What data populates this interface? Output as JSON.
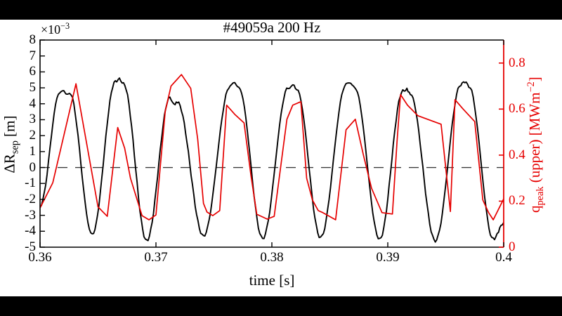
{
  "title": "#49059a 200 Hz",
  "colors": {
    "left_axis": "#000000",
    "right_axis": "#e60000",
    "zero_line": "#3c3c3c",
    "figure_bg": "#ffffff",
    "letterbox": "#000000"
  },
  "axes": {
    "x": {
      "label": "time [s]",
      "tick_labels": [
        "0.36",
        "0.37",
        "0.38",
        "0.39",
        "0.4"
      ],
      "tick_values": [
        0.36,
        0.37,
        0.38,
        0.39,
        0.4
      ],
      "range": [
        0.36,
        0.4
      ]
    },
    "y_left": {
      "label_prefix": "ΔR",
      "label_sub": "sep",
      "label_suffix": " [m]",
      "multiplier_base": "×10",
      "multiplier_sup": "−3",
      "tick_labels": [
        "8",
        "7",
        "6",
        "5",
        "4",
        "3",
        "2",
        "1",
        "0",
        "-1",
        "-2",
        "-3",
        "-4",
        "-5"
      ],
      "tick_values": [
        8,
        7,
        6,
        5,
        4,
        3,
        2,
        1,
        0,
        -1,
        -2,
        -3,
        -4,
        -5
      ],
      "range": [
        -5,
        8
      ]
    },
    "y_right": {
      "label_main": "q",
      "label_sub": "peak",
      "label_mid": " (upper) [MWm",
      "label_sup": "−2",
      "label_close": "]",
      "tick_labels": [
        "0",
        "0.2",
        "0.4",
        "0.6",
        "0.8"
      ],
      "tick_values": [
        0,
        0.2,
        0.4,
        0.6,
        0.8
      ],
      "range": [
        0,
        0.9
      ]
    }
  },
  "chart_data": {
    "type": "line",
    "title": "#49059a 200 Hz",
    "xlabel": "time [s]",
    "x_range": [
      0.36,
      0.4
    ],
    "y_left_range": [
      -5,
      8
    ],
    "y_left_units": "1e-3 m",
    "y_right_range": [
      0,
      0.9
    ],
    "y_right_units": "MW m^-2",
    "grid": false,
    "legend": false,
    "reference_line": {
      "axis": "left",
      "value": 0,
      "style": "dashed",
      "color": "#3c3c3c"
    },
    "series": [
      {
        "name": "delta_R_sep",
        "axis": "left",
        "color": "#000000",
        "interpolation": "smooth",
        "points": [
          [
            0.36,
            -2.4
          ],
          [
            0.3617,
            4.7
          ],
          [
            0.36205,
            4.85
          ],
          [
            0.3623,
            4.55
          ],
          [
            0.36255,
            4.7
          ],
          [
            0.3645,
            -4.2
          ],
          [
            0.3665,
            5.4
          ],
          [
            0.36685,
            5.55
          ],
          [
            0.3672,
            5.25
          ],
          [
            0.3692,
            -4.6
          ],
          [
            0.3712,
            4.4
          ],
          [
            0.37155,
            3.95
          ],
          [
            0.37185,
            4.1
          ],
          [
            0.3741,
            -4.3
          ],
          [
            0.3764,
            5.1
          ],
          [
            0.3768,
            5.3
          ],
          [
            0.37715,
            5.0
          ],
          [
            0.3792,
            -4.45
          ],
          [
            0.3814,
            5.0
          ],
          [
            0.3818,
            5.2
          ],
          [
            0.38215,
            4.9
          ],
          [
            0.3842,
            -4.4
          ],
          [
            0.3864,
            5.2
          ],
          [
            0.3868,
            5.3
          ],
          [
            0.38715,
            5.0
          ],
          [
            0.3893,
            -4.5
          ],
          [
            0.3913,
            4.8
          ],
          [
            0.39165,
            4.9
          ],
          [
            0.39195,
            4.6
          ],
          [
            0.3941,
            -4.6
          ],
          [
            0.3963,
            5.2
          ],
          [
            0.39665,
            5.4
          ],
          [
            0.397,
            5.1
          ],
          [
            0.3991,
            -4.5
          ],
          [
            0.4,
            -3.5
          ]
        ]
      },
      {
        "name": "q_peak_upper",
        "axis": "right",
        "color": "#e60000",
        "interpolation": "linear",
        "points": [
          [
            0.36,
            0.17
          ],
          [
            0.3611,
            0.28
          ],
          [
            0.3631,
            0.71
          ],
          [
            0.365,
            0.175
          ],
          [
            0.3658,
            0.134
          ],
          [
            0.3667,
            0.52
          ],
          [
            0.3673,
            0.43
          ],
          [
            0.3678,
            0.3
          ],
          [
            0.3688,
            0.137
          ],
          [
            0.3694,
            0.119
          ],
          [
            0.37,
            0.14
          ],
          [
            0.3708,
            0.59
          ],
          [
            0.3713,
            0.7
          ],
          [
            0.3722,
            0.75
          ],
          [
            0.373,
            0.69
          ],
          [
            0.3736,
            0.47
          ],
          [
            0.3741,
            0.19
          ],
          [
            0.3744,
            0.153
          ],
          [
            0.3749,
            0.137
          ],
          [
            0.3755,
            0.159
          ],
          [
            0.3761,
            0.617
          ],
          [
            0.3768,
            0.577
          ],
          [
            0.3776,
            0.54
          ],
          [
            0.3782,
            0.31
          ],
          [
            0.3787,
            0.143
          ],
          [
            0.3796,
            0.122
          ],
          [
            0.3802,
            0.134
          ],
          [
            0.3813,
            0.556
          ],
          [
            0.3818,
            0.617
          ],
          [
            0.3825,
            0.632
          ],
          [
            0.383,
            0.3
          ],
          [
            0.3835,
            0.205
          ],
          [
            0.384,
            0.159
          ],
          [
            0.3844,
            0.15
          ],
          [
            0.3855,
            0.119
          ],
          [
            0.3864,
            0.51
          ],
          [
            0.3872,
            0.556
          ],
          [
            0.3879,
            0.4
          ],
          [
            0.3886,
            0.256
          ],
          [
            0.3895,
            0.15
          ],
          [
            0.3904,
            0.144
          ],
          [
            0.3908,
            0.46
          ],
          [
            0.3911,
            0.663
          ],
          [
            0.3917,
            0.617
          ],
          [
            0.3926,
            0.571
          ],
          [
            0.3946,
            0.534
          ],
          [
            0.3954,
            0.155
          ],
          [
            0.3958,
            0.641
          ],
          [
            0.3965,
            0.6
          ],
          [
            0.3975,
            0.546
          ],
          [
            0.3982,
            0.205
          ],
          [
            0.3987,
            0.15
          ],
          [
            0.3991,
            0.119
          ],
          [
            0.4,
            0.21
          ]
        ]
      }
    ]
  }
}
